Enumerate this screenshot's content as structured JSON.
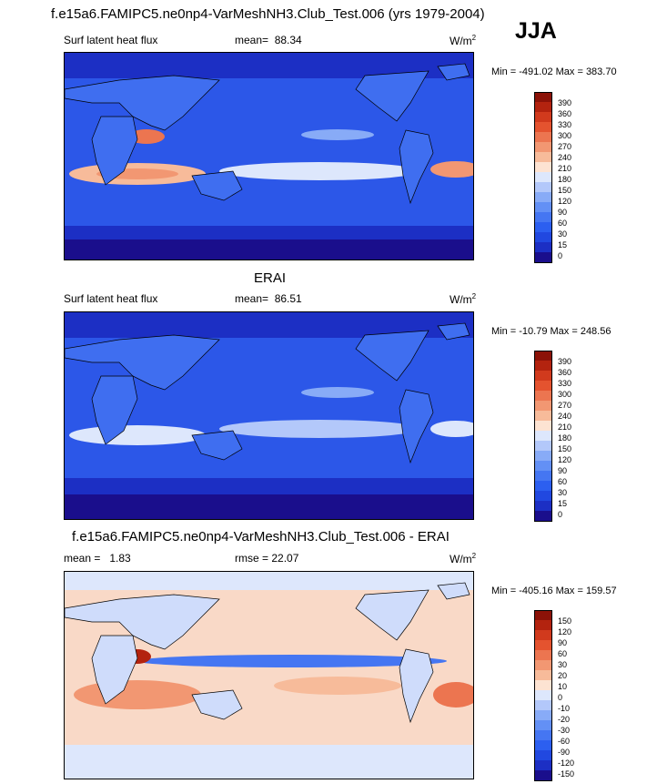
{
  "header": {
    "title": "f.e15a6.FAMIPC5.ne0np4-VarMeshNH3.Club_Test.006 (yrs 1979-2004)",
    "season": "JJA"
  },
  "colors": {
    "scale_main": [
      "#1a0e8c",
      "#1c2fc4",
      "#2148e0",
      "#2c5ff0",
      "#4576f2",
      "#6390f5",
      "#88abf7",
      "#b3c8fa",
      "#dde7fc",
      "#fde3d2",
      "#f7bb9a",
      "#f29772",
      "#ec7550",
      "#e4532f",
      "#d13a1d",
      "#b3230f",
      "#8c1208"
    ],
    "scale_diff": [
      "#1a0e8c",
      "#1c2fc4",
      "#2148e0",
      "#2c5ff0",
      "#4576f2",
      "#6390f5",
      "#88abf7",
      "#b3c8fa",
      "#dde7fc",
      "#fde3d2",
      "#f7bb9a",
      "#f29772",
      "#ec7550",
      "#e4532f",
      "#d13a1d",
      "#b3230f",
      "#8c1208"
    ],
    "ocean_main": "#2c57e8",
    "land_main": "#3f6ef0",
    "ocean_diff": "#f9d9c7",
    "land_diff": "#cfdcfb"
  },
  "chart_data": [
    {
      "type": "heatmap",
      "panel_id": "model",
      "variable_label": "Surf latent heat flux",
      "mean_label": "mean=",
      "mean": "88.34",
      "units": "W/m",
      "units_exp": "2",
      "min_max": "Min = -491.02 Max = 383.70",
      "colorbar_ticks": [
        "390",
        "360",
        "330",
        "300",
        "270",
        "240",
        "210",
        "180",
        "150",
        "120",
        "90",
        "60",
        "30",
        "15",
        "0"
      ]
    },
    {
      "type": "heatmap",
      "panel_id": "obs",
      "subtitle": "ERAI",
      "variable_label": "Surf latent heat flux",
      "mean_label": "mean=",
      "mean": "86.51",
      "units": "W/m",
      "units_exp": "2",
      "min_max": "Min = -10.79 Max = 248.56",
      "colorbar_ticks": [
        "390",
        "360",
        "330",
        "300",
        "270",
        "240",
        "210",
        "180",
        "150",
        "120",
        "90",
        "60",
        "30",
        "15",
        "0"
      ]
    },
    {
      "type": "heatmap",
      "panel_id": "diff",
      "subtitle": "f.e15a6.FAMIPC5.ne0np4-VarMeshNH3.Club_Test.006 - ERAI",
      "mean_label": "mean =",
      "mean": "1.83",
      "rmse_label": "rmse =",
      "rmse": "22.07",
      "units": "W/m",
      "units_exp": "2",
      "min_max": "Min = -405.16 Max = 159.57",
      "colorbar_ticks": [
        "150",
        "120",
        "90",
        "60",
        "30",
        "20",
        "10",
        "0",
        "-10",
        "-20",
        "-30",
        "-60",
        "-90",
        "-120",
        "-150"
      ]
    }
  ]
}
